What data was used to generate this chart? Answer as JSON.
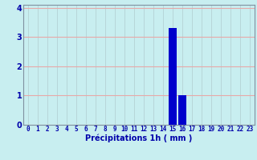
{
  "hours": [
    0,
    1,
    2,
    3,
    4,
    5,
    6,
    7,
    8,
    9,
    10,
    11,
    12,
    13,
    14,
    15,
    16,
    17,
    18,
    19,
    20,
    21,
    22,
    23
  ],
  "values": [
    0,
    0,
    0,
    0,
    0,
    0,
    0,
    0,
    0,
    0,
    0,
    0,
    0,
    0,
    0,
    3.3,
    1.0,
    0,
    0,
    0,
    0,
    0,
    0,
    0
  ],
  "bar_color": "#0000cc",
  "background_color": "#c8eef0",
  "grid_color_h": "#e8a8a8",
  "grid_color_v": "#b0ccd0",
  "xlabel": "Précipitations 1h ( mm )",
  "xlabel_color": "#0000aa",
  "xlabel_fontsize": 7,
  "tick_color": "#0000aa",
  "tick_fontsize": 5.5,
  "ytick_fontsize": 7,
  "ylim": [
    0,
    4.1
  ],
  "yticks": [
    0,
    1,
    2,
    3,
    4
  ],
  "xlim": [
    -0.5,
    23.5
  ],
  "spine_color": "#8090a0"
}
